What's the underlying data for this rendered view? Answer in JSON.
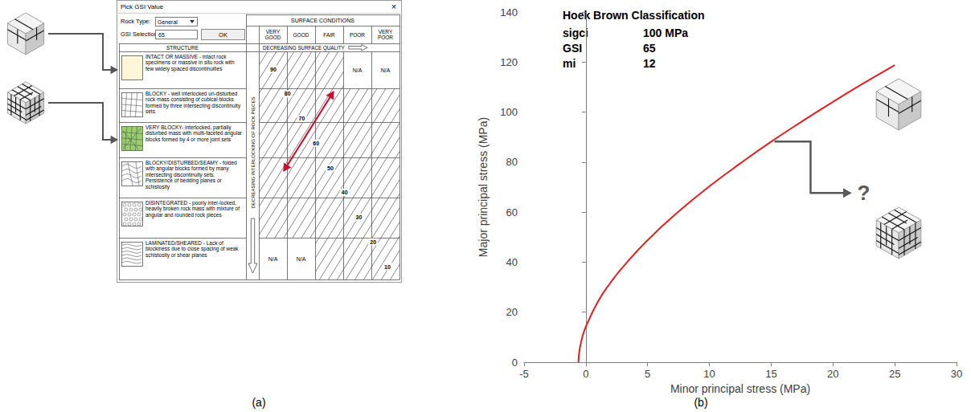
{
  "panel_labels": [
    "(a)",
    "(b)"
  ],
  "gsi_dialog": {
    "title": "Pick GSI Value",
    "close": "×",
    "rock_type_label": "Rock Type:",
    "rock_type": "General",
    "gsi_selection_label": "GSI Selection:",
    "gsi_selection": 65,
    "ok": "OK",
    "surface_header": "SURFACE CONDITIONS",
    "surface_columns": [
      "VERY GOOD",
      "GOOD",
      "FAIR",
      "POOR",
      "VERY POOR"
    ],
    "structure_header": "STRUCTURE",
    "surface_arrow_label": "DECREASING SURFACE QUALITY",
    "interlocking_label": "DECREASING INTERLOCKING OF ROCK PIECES",
    "na_label": "N/A",
    "rows": [
      {
        "text": "INTACT OR MASSIVE - intact rock specimens or massive in situ rock with few widely spaced discontinuities",
        "na_columns": [
          "POOR",
          "VERY POOR"
        ]
      },
      {
        "text": "BLOCKY - well interlocked un-disturbed rock mass consisting of cubical blocks formed by three intersecting discontinuity sets",
        "na_columns": []
      },
      {
        "text": "VERY BLOCKY- interlocked, partially disturbed mass with multi-faceted angular blocks formed by 4 or more joint sets",
        "na_columns": []
      },
      {
        "text": "BLOCKY/DISTURBED/SEAMY - folded with angular blocks formed by many intersecting discontinuity sets. Persistence of bedding planes or schistosity",
        "na_columns": []
      },
      {
        "text": "DISINTEGRATED - poorly inter-locked, heavily broken rock mass with mixture of angular and rounded rock pieces",
        "na_columns": []
      },
      {
        "text": "LAMINATED/SHEARED - Lack of blockiness due to close spacing of weak schistosity or shear planes",
        "na_columns": [
          "VERY GOOD",
          "GOOD"
        ]
      }
    ],
    "contours": [
      90,
      80,
      70,
      60,
      50,
      40,
      30,
      20,
      10
    ]
  },
  "chart_data": {
    "type": "line",
    "x": [
      -0.6,
      -0.5,
      -0.25,
      0,
      1,
      2,
      3,
      5,
      7.5,
      10,
      12.5,
      15,
      17.5,
      20,
      22.5,
      25
    ],
    "values": [
      0,
      5.2,
      10.7,
      14.2,
      24.4,
      31.8,
      38.1,
      48.8,
      60.2,
      70.3,
      79.5,
      88.2,
      96.3,
      104.1,
      111.6,
      118.8
    ],
    "color": "#e02020",
    "xlim": [
      -5,
      30
    ],
    "xticks": [
      -5,
      0,
      5,
      10,
      15,
      20,
      25,
      30
    ],
    "ylim": [
      0,
      140
    ],
    "yticks": [
      0,
      20,
      40,
      60,
      80,
      100,
      120,
      140
    ],
    "x_label": "Minor principal stress (MPa)",
    "y_label": "Major principal stress (MPa)",
    "grid": false,
    "annotation": {
      "title": "Hoek Brown Classification",
      "rows": [
        [
          "sigci",
          "100 MPa"
        ],
        [
          "GSI",
          "65"
        ],
        [
          "mi",
          "12"
        ]
      ]
    },
    "callout": "?"
  }
}
